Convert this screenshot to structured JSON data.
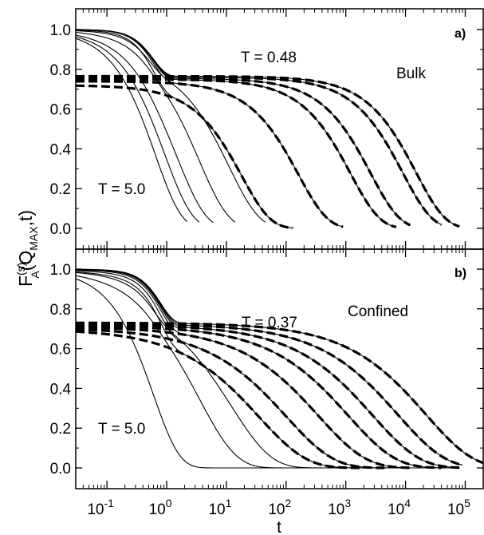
{
  "chart_data": [
    {
      "panel": "a)",
      "type": "line",
      "label": "Bulk",
      "x_scale": "log",
      "xlim": [
        0.03,
        200000
      ],
      "ylim": [
        -0.1,
        1.1
      ],
      "yticks": [
        "0.0",
        "0.2",
        "0.4",
        "0.6",
        "0.8",
        "1.0"
      ],
      "annotations": [
        "T = 0.48",
        "T = 5.0"
      ],
      "series_style": "solid = MD data, dashed = fit",
      "curves": [
        {
          "tau": 0.65,
          "beta": 1.0,
          "plateau": 1.0,
          "fast_tau": 0.5,
          "solid_end": 2.2,
          "dashed": false
        },
        {
          "tau": 0.95,
          "beta": 0.95,
          "plateau": 0.99,
          "fast_tau": 0.5,
          "solid_end": 3.5,
          "dashed": false
        },
        {
          "tau": 1.5,
          "beta": 0.9,
          "plateau": 0.97,
          "fast_tau": 0.5,
          "solid_end": 6,
          "dashed": false
        },
        {
          "tau": 3.5,
          "beta": 0.88,
          "plateau": 0.93,
          "fast_tau": 0.5,
          "solid_end": 14,
          "dashed": false
        },
        {
          "tau": 11,
          "beta": 0.85,
          "plateau": 0.85,
          "fast_tau": 0.5,
          "solid_end": 45,
          "dashed": false
        },
        {
          "tau": 18,
          "beta": 0.9,
          "plateau": 0.72,
          "fast_tau": 0.6,
          "solid_end": 130,
          "dashed": true
        },
        {
          "tau": 160,
          "beta": 0.88,
          "plateau": 0.74,
          "fast_tau": 0.6,
          "solid_end": 900,
          "dashed": true
        },
        {
          "tau": 1200,
          "beta": 0.88,
          "plateau": 0.75,
          "fast_tau": 0.6,
          "solid_end": 7000,
          "dashed": true
        },
        {
          "tau": 2600,
          "beta": 0.88,
          "plateau": 0.755,
          "fast_tau": 0.6,
          "solid_end": 12000,
          "dashed": true
        },
        {
          "tau": 9000,
          "beta": 0.88,
          "plateau": 0.76,
          "fast_tau": 0.6,
          "solid_end": 40000,
          "dashed": true
        },
        {
          "tau": 15000,
          "beta": 0.88,
          "plateau": 0.765,
          "fast_tau": 0.6,
          "solid_end": 80000,
          "dashed": true
        }
      ]
    },
    {
      "panel": "b)",
      "type": "line",
      "label": "Confined",
      "x_scale": "log",
      "xlim": [
        0.03,
        200000
      ],
      "ylim": [
        -0.1,
        1.1
      ],
      "yticks": [
        "0.0",
        "0.2",
        "0.4",
        "0.6",
        "0.8",
        "1.0"
      ],
      "annotations": [
        "T = 0.37",
        "T = 5.0"
      ],
      "series_style": "solid = MD data, dashed = fit",
      "curves": [
        {
          "tau": 0.6,
          "beta": 1.0,
          "plateau": 1.0,
          "fast_tau": 0.5,
          "solid_end": 80000,
          "dashed": false
        },
        {
          "tau": 3.5,
          "beta": 0.7,
          "plateau": 0.95,
          "fast_tau": 0.6,
          "solid_end": 300,
          "dashed": false
        },
        {
          "tau": 12,
          "beta": 0.65,
          "plateau": 0.85,
          "fast_tau": 0.6,
          "solid_end": 800,
          "dashed": false
        },
        {
          "tau": 35,
          "beta": 0.55,
          "plateau": 0.7,
          "fast_tau": 0.8,
          "solid_end": 2000,
          "dashed": true
        },
        {
          "tau": 100,
          "beta": 0.55,
          "plateau": 0.705,
          "fast_tau": 0.8,
          "solid_end": 5000,
          "dashed": true
        },
        {
          "tau": 350,
          "beta": 0.55,
          "plateau": 0.71,
          "fast_tau": 0.8,
          "solid_end": 12000,
          "dashed": true
        },
        {
          "tau": 1100,
          "beta": 0.55,
          "plateau": 0.715,
          "fast_tau": 0.8,
          "solid_end": 40000,
          "dashed": true
        },
        {
          "tau": 2800,
          "beta": 0.55,
          "plateau": 0.72,
          "fast_tau": 0.8,
          "solid_end": 80000,
          "dashed": true
        },
        {
          "tau": 7500,
          "beta": 0.55,
          "plateau": 0.725,
          "fast_tau": 0.8,
          "solid_end": 90000,
          "dashed": true
        },
        {
          "tau": 22000,
          "beta": 0.55,
          "plateau": 0.73,
          "fast_tau": 0.8,
          "solid_end": 200000,
          "dashed": true
        }
      ]
    }
  ],
  "shared": {
    "xlabel": "t",
    "ylabel_main": "F",
    "ylabel_sup": "(s)",
    "ylabel_sub": "A",
    "ylabel_args_open": "(Q",
    "ylabel_args_sub": "MAX",
    "ylabel_args_close": ",t)",
    "xtick_exponents": [
      "-1",
      "0",
      "1",
      "2",
      "3",
      "4",
      "5"
    ],
    "xtick_base": "10"
  }
}
